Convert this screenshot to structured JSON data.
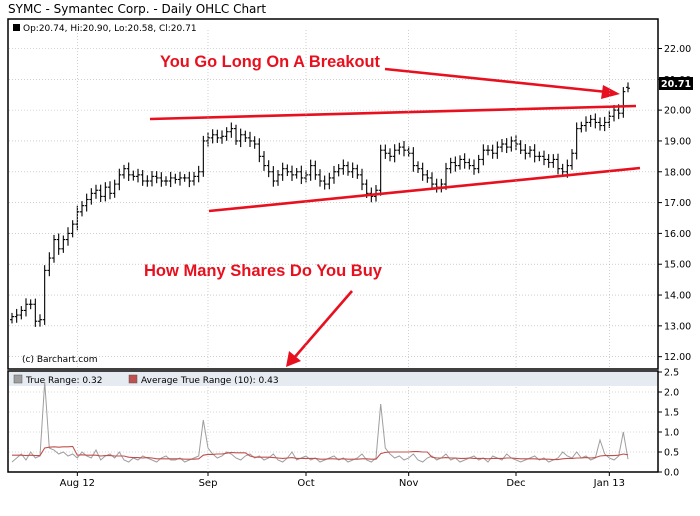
{
  "title": "SYMC - Symantec Corp. - Daily OHLC Chart",
  "ohlc_label": "Op:20.74, Hi:20.90, Lo:20.58, Cl:20.71",
  "watermark": "(c) Barchart.com",
  "last_price_tag": "20.71",
  "annotation_top": "You Go Long On A Breakout",
  "annotation_bottom": "How Many Shares Do You Buy",
  "lower_legend": {
    "tr": "True Range: 0.32",
    "atr": "Average True Range (10): 0.43"
  },
  "colors": {
    "annotation_red": "#e8101e",
    "bar_color": "#000000",
    "tr_line": "#9e9e9e",
    "atr_line": "#c0504d",
    "grid": "#b0b0b0",
    "tag_bg": "#000000",
    "tag_fg": "#ffffff"
  },
  "chart_data": [
    {
      "type": "ohlc",
      "title": "SYMC - Symantec Corp. - Daily OHLC Chart",
      "ylim": [
        11.6,
        22.6
      ],
      "y_ticks": [
        12.0,
        13.0,
        14.0,
        15.0,
        16.0,
        17.0,
        18.0,
        19.0,
        20.0,
        21.0,
        22.0
      ],
      "x_tick_labels": [
        "Aug 12",
        "Sep",
        "Oct",
        "Nov",
        "Dec",
        "Jan 13"
      ],
      "x_tick_index": [
        14,
        42,
        63,
        85,
        108,
        128
      ],
      "last_bar": {
        "open": 20.74,
        "high": 20.9,
        "low": 20.58,
        "close": 20.71
      },
      "closes": [
        13.3,
        13.35,
        13.5,
        13.7,
        13.7,
        13.15,
        13.2,
        14.8,
        15.2,
        15.8,
        15.5,
        15.8,
        16.0,
        16.3,
        16.7,
        16.9,
        17.1,
        17.3,
        17.4,
        17.2,
        17.5,
        17.3,
        17.6,
        17.9,
        18.1,
        17.9,
        17.85,
        17.9,
        17.7,
        17.7,
        17.85,
        17.8,
        17.7,
        17.7,
        17.8,
        17.75,
        17.8,
        17.8,
        17.7,
        17.85,
        18.0,
        19.0,
        19.1,
        19.2,
        19.1,
        19.15,
        19.3,
        19.4,
        19.0,
        19.2,
        19.1,
        19.0,
        18.9,
        18.5,
        18.2,
        18.0,
        17.7,
        17.9,
        18.1,
        18.0,
        17.9,
        18.0,
        17.8,
        17.9,
        18.2,
        17.9,
        17.7,
        17.6,
        17.8,
        18.0,
        18.1,
        18.2,
        18.0,
        18.1,
        17.9,
        17.6,
        17.3,
        17.2,
        17.4,
        18.7,
        18.6,
        18.5,
        18.7,
        18.8,
        18.7,
        18.6,
        18.2,
        18.1,
        17.9,
        17.8,
        17.6,
        17.5,
        17.6,
        18.1,
        18.3,
        18.2,
        18.4,
        18.3,
        18.2,
        18.1,
        18.4,
        18.7,
        18.7,
        18.6,
        18.8,
        18.9,
        18.8,
        19.0,
        18.9,
        18.7,
        18.6,
        18.7,
        18.5,
        18.5,
        18.4,
        18.3,
        18.4,
        18.1,
        18.0,
        18.2,
        18.6,
        19.4,
        19.5,
        19.6,
        19.7,
        19.6,
        19.5,
        19.6,
        19.8,
        20.0,
        19.9,
        20.6,
        20.71
      ],
      "annotations": [
        "You Go Long On A Breakout",
        "How Many Shares Do You Buy"
      ]
    },
    {
      "type": "line",
      "ylim": [
        0.0,
        2.5
      ],
      "y_ticks": [
        0.0,
        0.5,
        1.0,
        1.5,
        2.0,
        2.5
      ],
      "series": [
        {
          "name": "True Range",
          "last": 0.32
        },
        {
          "name": "Average True Range (10)",
          "last": 0.43
        }
      ],
      "true_range": [
        0.25,
        0.35,
        0.45,
        0.3,
        0.5,
        0.35,
        0.4,
        2.25,
        0.6,
        0.55,
        0.45,
        0.5,
        0.4,
        0.45,
        0.35,
        0.5,
        0.4,
        0.35,
        0.55,
        0.3,
        0.4,
        0.45,
        0.35,
        0.5,
        0.3,
        0.25,
        0.35,
        0.3,
        0.4,
        0.35,
        0.3,
        0.25,
        0.35,
        0.4,
        0.3,
        0.3,
        0.35,
        0.25,
        0.3,
        0.35,
        0.4,
        1.3,
        0.6,
        0.45,
        0.35,
        0.4,
        0.5,
        0.45,
        0.35,
        0.3,
        0.4,
        0.45,
        0.35,
        0.4,
        0.3,
        0.35,
        0.45,
        0.3,
        0.25,
        0.35,
        0.5,
        0.3,
        0.35,
        0.4,
        0.3,
        0.35,
        0.25,
        0.3,
        0.35,
        0.4,
        0.3,
        0.35,
        0.25,
        0.3,
        0.35,
        0.45,
        0.3,
        0.25,
        0.35,
        1.7,
        0.6,
        0.45,
        0.35,
        0.4,
        0.3,
        0.35,
        0.45,
        0.3,
        0.25,
        0.35,
        0.4,
        0.3,
        0.35,
        0.45,
        0.3,
        0.35,
        0.25,
        0.3,
        0.35,
        0.4,
        0.3,
        0.35,
        0.25,
        0.4,
        0.35,
        0.3,
        0.45,
        0.35,
        0.3,
        0.25,
        0.3,
        0.35,
        0.4,
        0.3,
        0.35,
        0.25,
        0.3,
        0.35,
        0.5,
        0.4,
        0.35,
        0.5,
        0.35,
        0.4,
        0.3,
        0.35,
        0.8,
        0.45,
        0.35,
        0.3,
        0.4,
        1.0,
        0.32
      ],
      "average_true_range": [
        0.42,
        0.42,
        0.42,
        0.41,
        0.42,
        0.41,
        0.41,
        0.6,
        0.62,
        0.63,
        0.62,
        0.63,
        0.63,
        0.64,
        0.42,
        0.43,
        0.42,
        0.42,
        0.42,
        0.4,
        0.41,
        0.41,
        0.4,
        0.4,
        0.4,
        0.37,
        0.36,
        0.36,
        0.35,
        0.36,
        0.35,
        0.33,
        0.33,
        0.33,
        0.33,
        0.33,
        0.33,
        0.32,
        0.32,
        0.32,
        0.33,
        0.42,
        0.44,
        0.44,
        0.45,
        0.45,
        0.47,
        0.49,
        0.48,
        0.48,
        0.48,
        0.4,
        0.37,
        0.37,
        0.37,
        0.37,
        0.36,
        0.35,
        0.34,
        0.35,
        0.36,
        0.34,
        0.34,
        0.34,
        0.34,
        0.34,
        0.32,
        0.32,
        0.33,
        0.33,
        0.32,
        0.33,
        0.32,
        0.32,
        0.32,
        0.33,
        0.33,
        0.32,
        0.32,
        0.46,
        0.49,
        0.5,
        0.5,
        0.5,
        0.5,
        0.5,
        0.51,
        0.51,
        0.5,
        0.5,
        0.37,
        0.35,
        0.35,
        0.36,
        0.35,
        0.35,
        0.34,
        0.34,
        0.35,
        0.34,
        0.34,
        0.34,
        0.33,
        0.34,
        0.34,
        0.34,
        0.35,
        0.35,
        0.34,
        0.33,
        0.33,
        0.33,
        0.33,
        0.32,
        0.32,
        0.32,
        0.31,
        0.31,
        0.33,
        0.34,
        0.34,
        0.35,
        0.35,
        0.36,
        0.35,
        0.36,
        0.4,
        0.41,
        0.41,
        0.41,
        0.42,
        0.45,
        0.43
      ]
    }
  ]
}
